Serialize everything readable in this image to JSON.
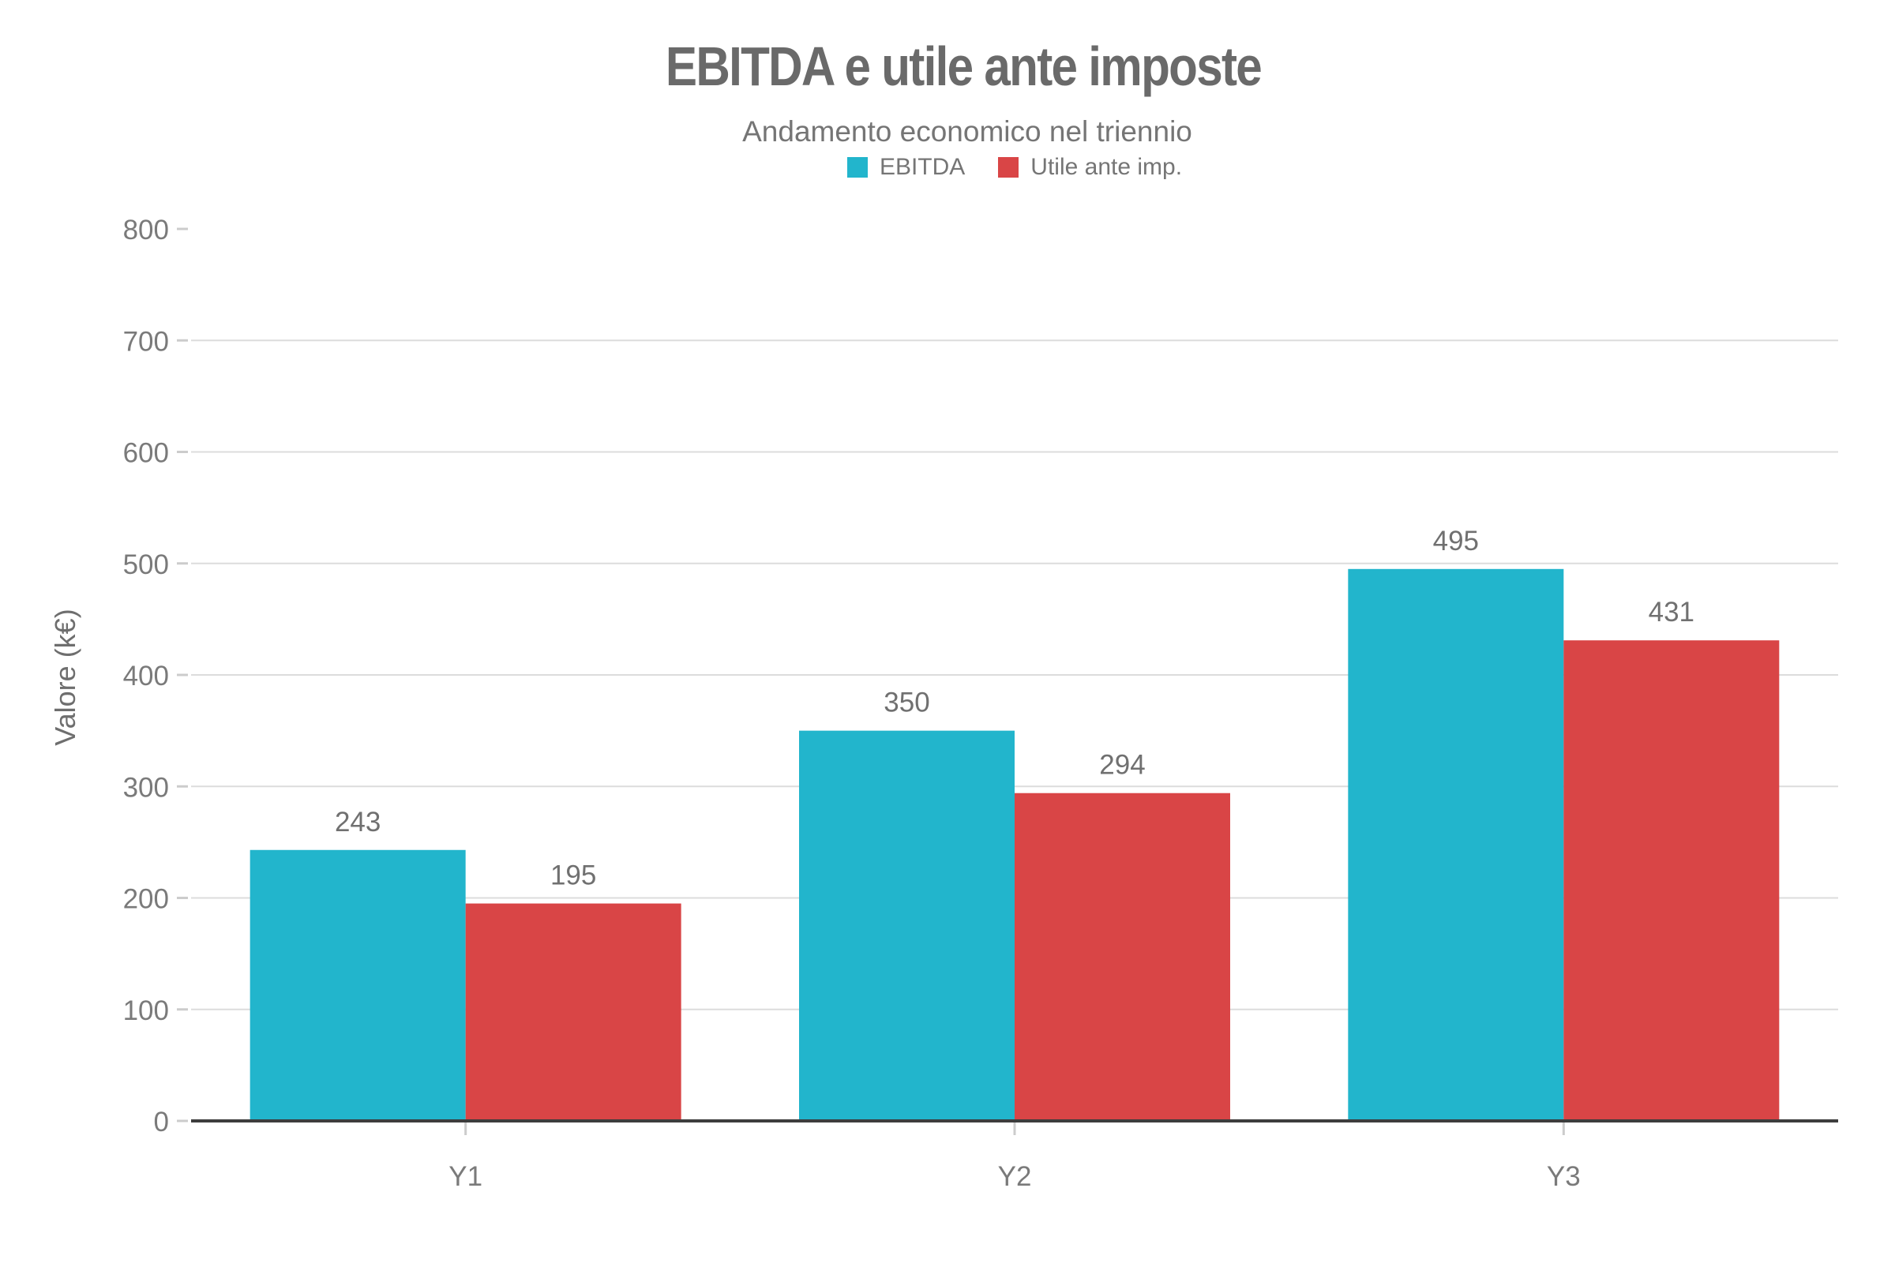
{
  "chart_data": {
    "type": "bar",
    "title": "EBITDA e utile ante imposte",
    "subtitle": "Andamento economico nel triennio",
    "categories": [
      "Y1",
      "Y2",
      "Y3"
    ],
    "series": [
      {
        "name": "EBITDA",
        "color": "#22b5cc",
        "values": [
          243,
          350,
          495
        ]
      },
      {
        "name": "Utile ante imp.",
        "color": "#d94546",
        "values": [
          195,
          294,
          431
        ]
      }
    ],
    "xlabel": "",
    "ylabel": "Valore (k€)",
    "ylim": [
      0,
      800
    ],
    "yticks": [
      0,
      100,
      200,
      300,
      400,
      500,
      600,
      700,
      800
    ],
    "grid": true,
    "legend_position": "top",
    "value_labels": true
  }
}
